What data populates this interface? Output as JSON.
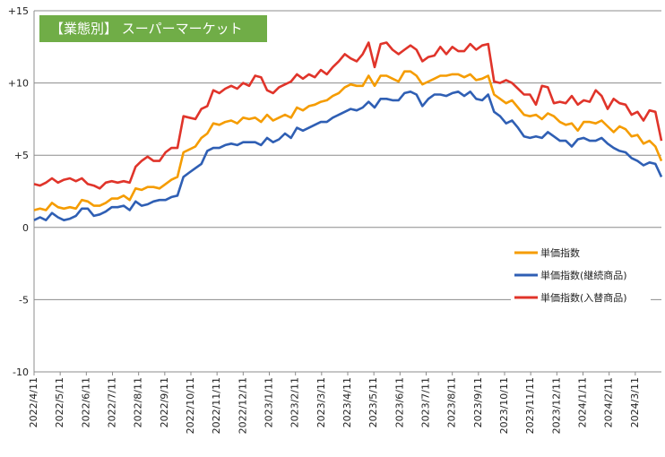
{
  "chart_data": {
    "type": "line",
    "title": "【業態別】 スーパーマーケット",
    "title_color": "#70ad47",
    "xlabel": "",
    "ylabel": "",
    "ylim": [
      -10,
      15
    ],
    "y_ticks": [
      {
        "value": 15,
        "label": "+15"
      },
      {
        "value": 10,
        "label": "+10"
      },
      {
        "value": 5,
        "label": "+5"
      },
      {
        "value": 0,
        "label": "0"
      },
      {
        "value": -5,
        "label": "-5"
      },
      {
        "value": -10,
        "label": "-10"
      }
    ],
    "x_tick_labels": [
      "2022/4/11",
      "2022/5/11",
      "2022/6/11",
      "2022/7/11",
      "2022/8/11",
      "2022/9/11",
      "2022/10/11",
      "2022/11/11",
      "2022/12/11",
      "2023/1/11",
      "2023/2/11",
      "2023/3/11",
      "2023/4/11",
      "2023/5/11",
      "2023/6/11",
      "2023/7/11",
      "2023/8/11",
      "2023/9/11",
      "2023/10/11",
      "2023/11/11",
      "2023/12/11",
      "2024/1/11",
      "2024/2/11",
      "2024/3/11"
    ],
    "grid": true,
    "legend_position": "right-middle",
    "series": [
      {
        "name": "単価指数",
        "color": "#f59c00",
        "values": [
          1.2,
          1.3,
          1.2,
          1.7,
          1.4,
          1.3,
          1.4,
          1.3,
          1.9,
          1.8,
          1.5,
          1.5,
          1.7,
          2.0,
          2.0,
          2.2,
          1.9,
          2.7,
          2.6,
          2.8,
          2.8,
          2.7,
          3.0,
          3.3,
          3.5,
          5.2,
          5.4,
          5.6,
          6.2,
          6.5,
          7.2,
          7.1,
          7.3,
          7.4,
          7.2,
          7.6,
          7.5,
          7.6,
          7.3,
          7.8,
          7.4,
          7.6,
          7.8,
          7.6,
          8.3,
          8.1,
          8.4,
          8.5,
          8.7,
          8.8,
          9.1,
          9.3,
          9.7,
          9.9,
          9.8,
          9.8,
          10.5,
          9.8,
          10.5,
          10.5,
          10.3,
          10.1,
          10.8,
          10.8,
          10.5,
          9.9,
          10.1,
          10.3,
          10.5,
          10.5,
          10.6,
          10.6,
          10.4,
          10.6,
          10.2,
          10.3,
          10.5,
          9.2,
          8.9,
          8.6,
          8.8,
          8.3,
          7.8,
          7.7,
          7.8,
          7.5,
          7.9,
          7.7,
          7.3,
          7.1,
          7.2,
          6.7,
          7.3,
          7.3,
          7.2,
          7.4,
          7.0,
          6.6,
          7.0,
          6.8,
          6.3,
          6.4,
          5.8,
          6.0,
          5.6,
          4.6
        ]
      },
      {
        "name": "単価指数(継続商品)",
        "color": "#2f5fb4",
        "values": [
          0.5,
          0.7,
          0.5,
          1.0,
          0.7,
          0.5,
          0.6,
          0.8,
          1.3,
          1.3,
          0.8,
          0.9,
          1.1,
          1.4,
          1.4,
          1.5,
          1.2,
          1.8,
          1.5,
          1.6,
          1.8,
          1.9,
          1.9,
          2.1,
          2.2,
          3.5,
          3.8,
          4.1,
          4.4,
          5.3,
          5.5,
          5.5,
          5.7,
          5.8,
          5.7,
          5.9,
          5.9,
          5.9,
          5.7,
          6.2,
          5.9,
          6.1,
          6.5,
          6.2,
          6.9,
          6.7,
          6.9,
          7.1,
          7.3,
          7.3,
          7.6,
          7.8,
          8.0,
          8.2,
          8.1,
          8.3,
          8.7,
          8.3,
          8.9,
          8.9,
          8.8,
          8.8,
          9.3,
          9.4,
          9.2,
          8.4,
          8.9,
          9.2,
          9.2,
          9.1,
          9.3,
          9.4,
          9.1,
          9.4,
          8.9,
          8.8,
          9.2,
          8.0,
          7.7,
          7.2,
          7.4,
          6.9,
          6.3,
          6.2,
          6.3,
          6.2,
          6.6,
          6.3,
          6.0,
          6.0,
          5.6,
          6.1,
          6.2,
          6.0,
          6.0,
          6.2,
          5.8,
          5.5,
          5.3,
          5.2,
          4.8,
          4.6,
          4.3,
          4.5,
          4.4,
          3.5
        ]
      },
      {
        "name": "単価指数(入替商品)",
        "color": "#e0342a",
        "values": [
          3.0,
          2.9,
          3.1,
          3.4,
          3.1,
          3.3,
          3.4,
          3.2,
          3.4,
          3.0,
          2.9,
          2.7,
          3.1,
          3.2,
          3.1,
          3.2,
          3.1,
          4.2,
          4.6,
          4.9,
          4.6,
          4.6,
          5.2,
          5.5,
          5.5,
          7.7,
          7.6,
          7.5,
          8.2,
          8.4,
          9.5,
          9.3,
          9.6,
          9.8,
          9.6,
          10.0,
          9.8,
          10.5,
          10.4,
          9.5,
          9.3,
          9.7,
          9.9,
          10.1,
          10.6,
          10.3,
          10.6,
          10.4,
          10.9,
          10.6,
          11.1,
          11.5,
          12.0,
          11.7,
          11.5,
          12.0,
          12.8,
          11.1,
          12.7,
          12.8,
          12.3,
          12.0,
          12.3,
          12.6,
          12.3,
          11.5,
          11.8,
          11.9,
          12.5,
          12.0,
          12.5,
          12.2,
          12.2,
          12.7,
          12.3,
          12.6,
          12.7,
          10.1,
          10.0,
          10.2,
          10.0,
          9.6,
          9.2,
          9.2,
          8.5,
          9.8,
          9.7,
          8.6,
          8.7,
          8.6,
          9.1,
          8.5,
          8.8,
          8.7,
          9.5,
          9.1,
          8.2,
          8.9,
          8.6,
          8.5,
          7.8,
          8.0,
          7.4,
          8.1,
          8.0,
          6.0
        ]
      }
    ]
  }
}
